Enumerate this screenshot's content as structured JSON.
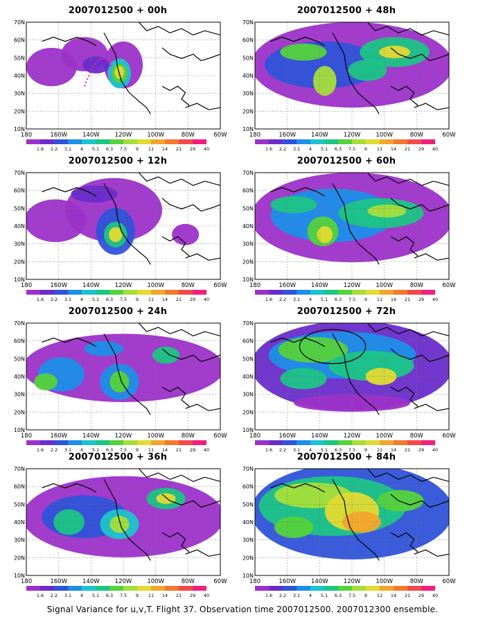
{
  "caption": "Signal Variance for u,v,T. Flight 37. Observation time 2007012500. 2007012300 ensemble.",
  "lat_labels": [
    "70N",
    "60N",
    "50N",
    "40N",
    "30N",
    "20N",
    "10N"
  ],
  "lon_labels": [
    "180",
    "160W",
    "140W",
    "120W",
    "100W",
    "80W",
    "60W"
  ],
  "colorbar_labels": [
    "1.6",
    "2.2",
    "3.1",
    "4",
    "5.1",
    "6.3",
    "7.5",
    "9",
    "11",
    "14",
    "21",
    "29",
    "40"
  ],
  "colorbar_colors": [
    "#9c31c9",
    "#6a2cc9",
    "#2f53d9",
    "#1e8ee8",
    "#1cc4cc",
    "#1cc486",
    "#55d23c",
    "#a5de3a",
    "#e0da32",
    "#f2a52c",
    "#f27a2c",
    "#f24a4a",
    "#f2207a"
  ],
  "panels": [
    {
      "title": "2007012500 + 00h",
      "lead": "00h"
    },
    {
      "title": "2007012500 + 48h",
      "lead": "48h"
    },
    {
      "title": "2007012500 + 12h",
      "lead": "12h"
    },
    {
      "title": "2007012500 + 60h",
      "lead": "60h"
    },
    {
      "title": "2007012500 + 24h",
      "lead": "24h"
    },
    {
      "title": "2007012500 + 72h",
      "lead": "72h"
    },
    {
      "title": "2007012500 + 36h",
      "lead": "36h"
    },
    {
      "title": "2007012500 + 84h",
      "lead": "84h"
    }
  ]
}
